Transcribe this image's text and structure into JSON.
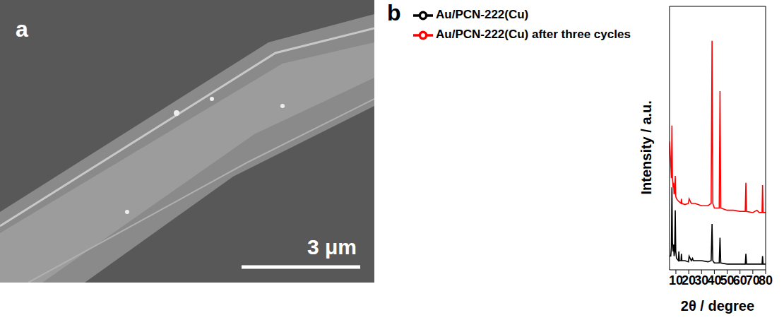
{
  "image_panel": {
    "label": "a",
    "scale_bar": "3 μm"
  },
  "chart_data": {
    "type": "line",
    "label": "b",
    "x_label": "2θ / degree",
    "y_label": "Intensity / a.u.",
    "xlim": [
      5,
      80
    ],
    "xticks": [
      10,
      20,
      30,
      40,
      50,
      60,
      70,
      80
    ],
    "ylim": [
      0,
      115
    ],
    "tick_labels": "x",
    "grid": false,
    "legend": "top-left",
    "series": [
      {
        "name": "Au/PCN-222(Cu)",
        "color": "#000000",
        "x": [
          5,
          6,
          6.5,
          6.9,
          7.3,
          7.8,
          8.2,
          8.6,
          9.0,
          9.5,
          9.9,
          10.5,
          12,
          12.3,
          12.7,
          14,
          14.3,
          14.7,
          17,
          19.8,
          20.3,
          22,
          23,
          23.5,
          25,
          30,
          35,
          37.5,
          38.2,
          38.8,
          40,
          43.8,
          44.4,
          45,
          50,
          55,
          60,
          64.1,
          64.6,
          65.1,
          70,
          75,
          77.2,
          77.6,
          78,
          80
        ],
        "values": [
          6,
          6,
          10,
          36,
          12,
          8,
          11,
          6,
          8,
          26,
          8,
          5,
          4,
          8,
          4,
          4,
          7,
          4,
          4,
          3.5,
          6,
          4,
          5,
          4,
          4,
          4,
          3.5,
          4,
          20,
          4,
          3,
          3,
          14,
          3,
          2.5,
          2.5,
          2.5,
          2.5,
          7,
          2.5,
          2.5,
          2.5,
          2.5,
          6,
          2.5,
          2.5
        ]
      },
      {
        "name": "Au/PCN-222(Cu) after three cycles",
        "color": "#ff0000",
        "x": [
          5,
          6,
          6.5,
          6.9,
          7.3,
          7.8,
          8.2,
          8.6,
          9.0,
          9.5,
          9.9,
          10.5,
          12,
          14,
          14.3,
          14.7,
          17,
          19.8,
          20.3,
          22,
          25,
          30,
          35,
          37.5,
          38.2,
          38.8,
          40,
          43.8,
          44.4,
          45,
          50,
          55,
          60,
          64.1,
          64.6,
          65.1,
          70,
          73.2,
          75,
          77.2,
          77.6,
          78,
          80
        ],
        "values": [
          56,
          46,
          40,
          63,
          40,
          36,
          38,
          33,
          34,
          41,
          32,
          31,
          30,
          29,
          31,
          29,
          28.5,
          29,
          31,
          29,
          29,
          28,
          28,
          29,
          100,
          29,
          27,
          27,
          78,
          27,
          26,
          26,
          25.5,
          25.5,
          38,
          25.5,
          25,
          26,
          25,
          25,
          37,
          25,
          25
        ]
      }
    ]
  }
}
